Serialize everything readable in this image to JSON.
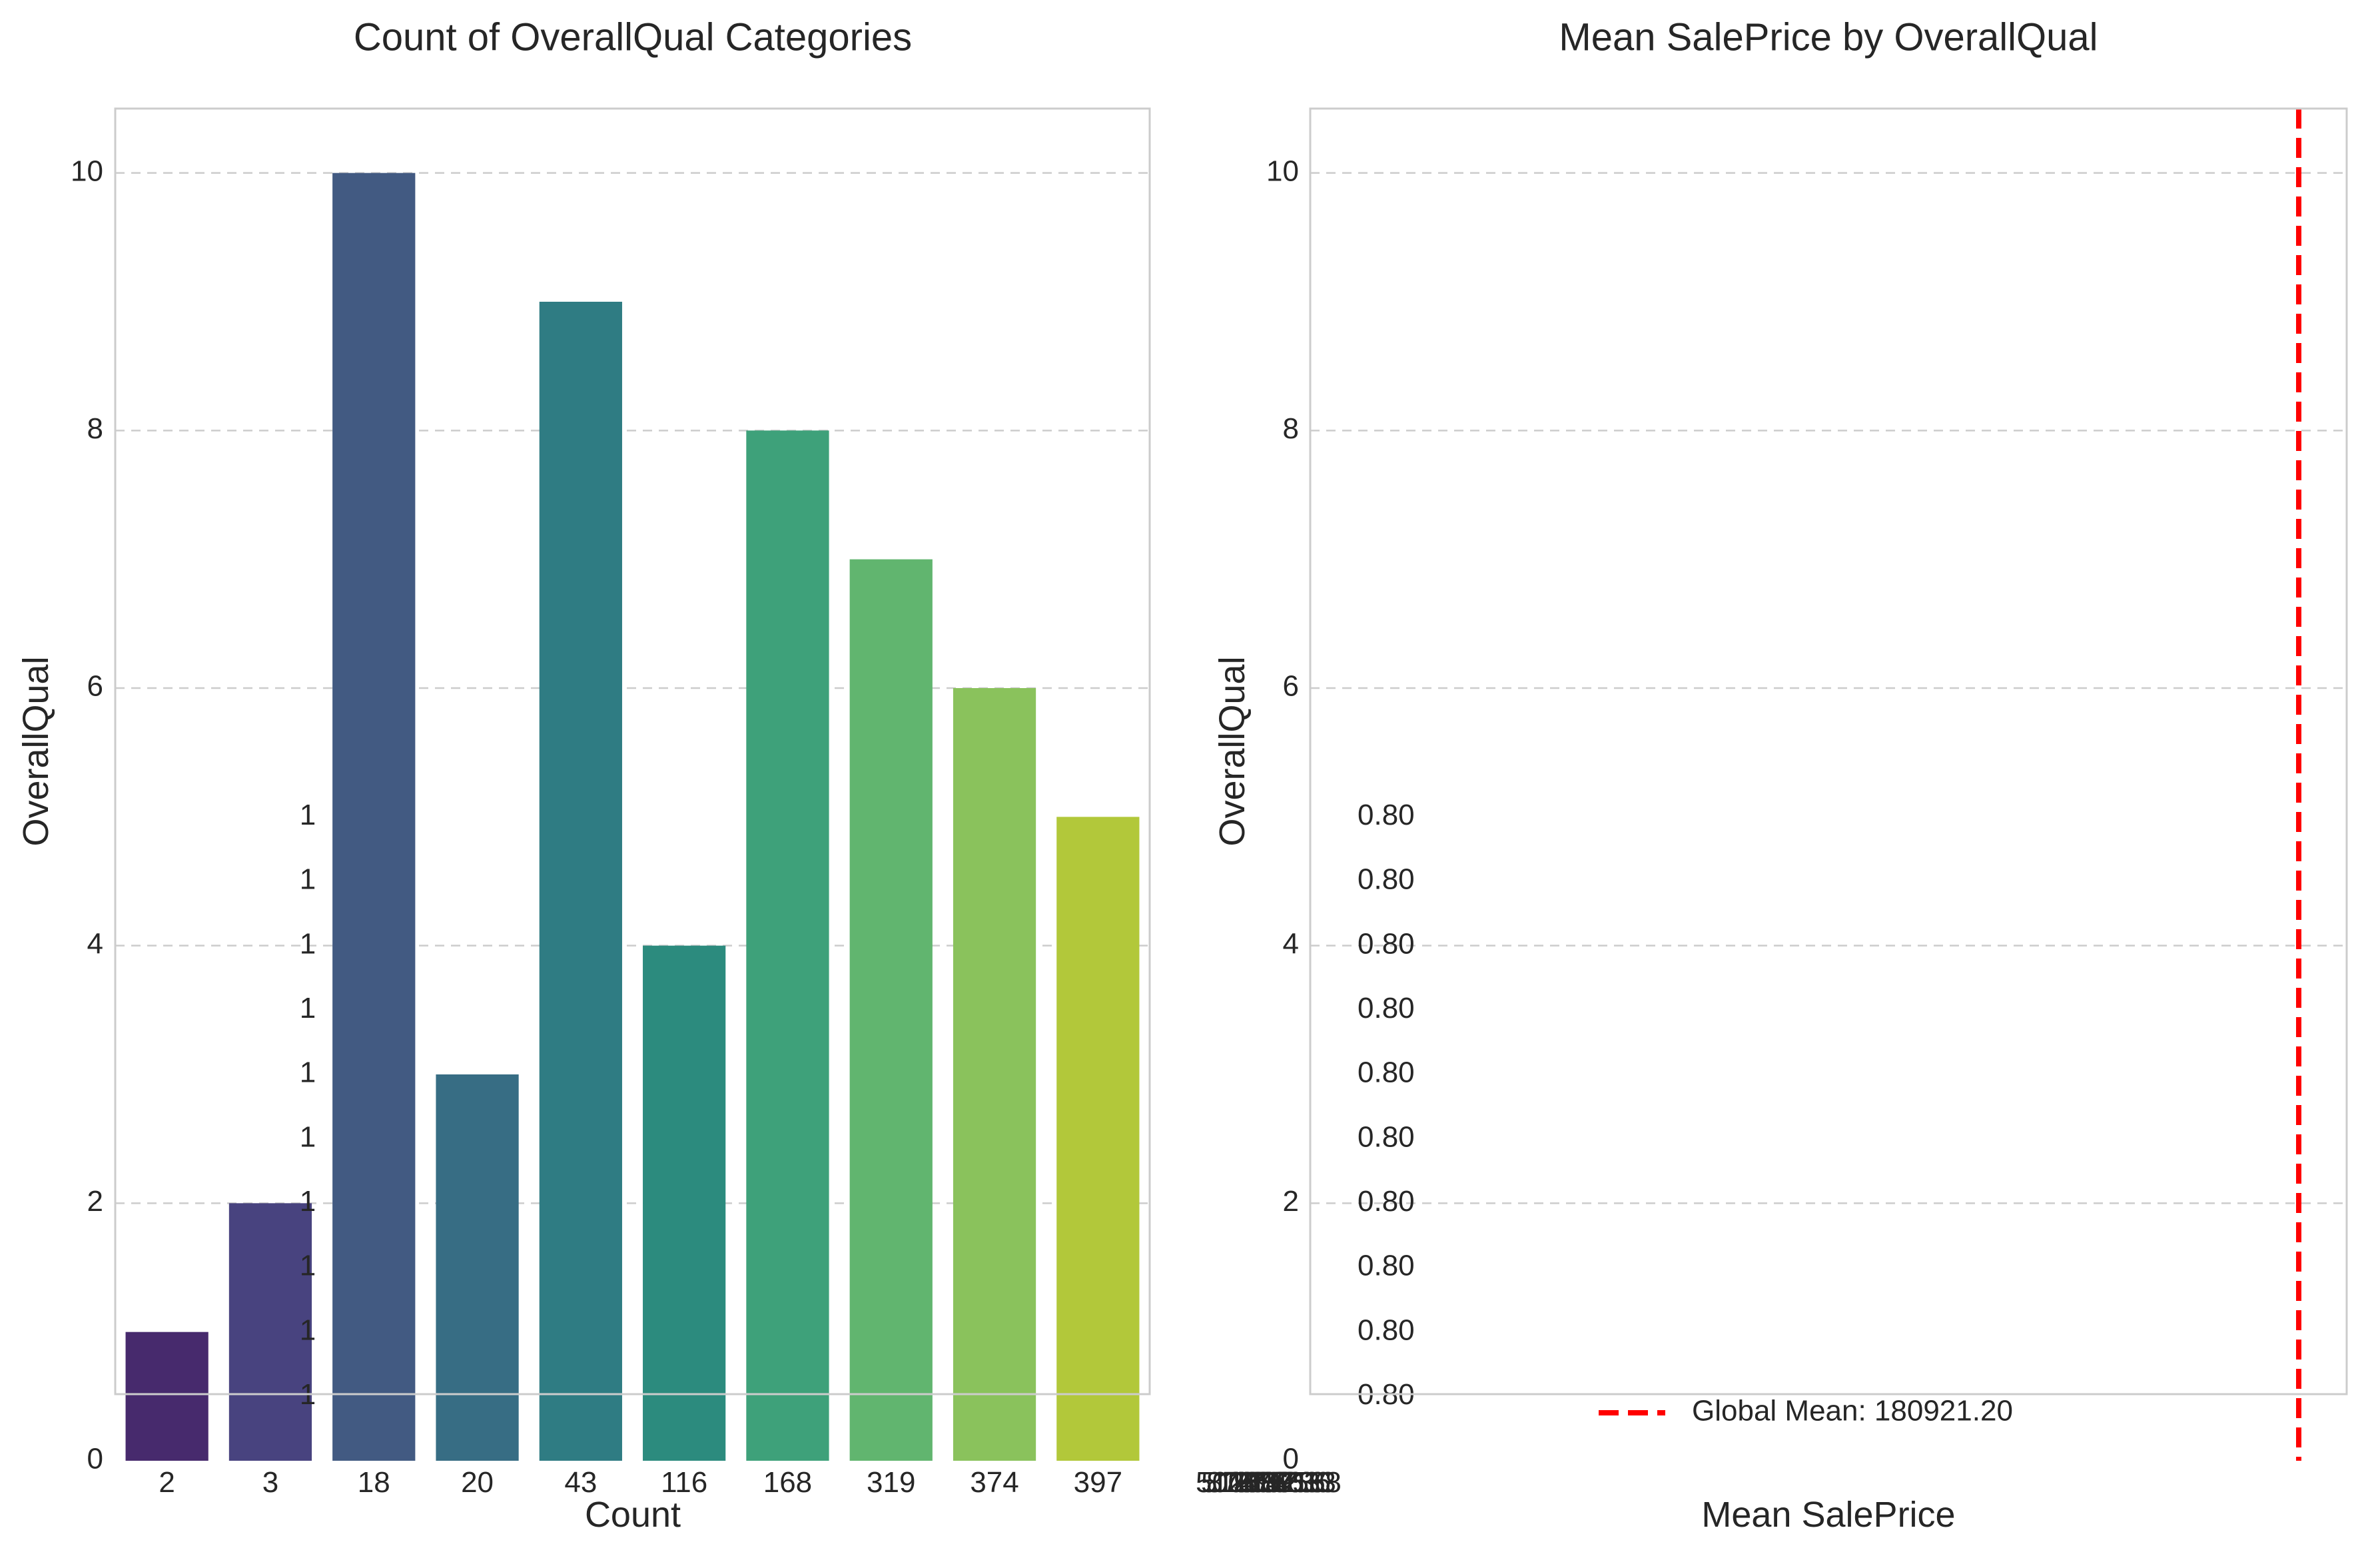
{
  "chart_data": [
    {
      "type": "bar",
      "title": "Count of OverallQual Categories",
      "xlabel": "Count",
      "ylabel": "OverallQual",
      "categories": [
        "2",
        "3",
        "18",
        "20",
        "43",
        "116",
        "168",
        "319",
        "374",
        "397"
      ],
      "values": [
        1,
        2,
        10,
        3,
        9,
        4,
        8,
        7,
        6,
        5
      ],
      "ylim": [
        0,
        10.5
      ],
      "yticks": [
        0,
        2,
        4,
        6,
        8,
        10
      ],
      "colors": [
        "#472a6d",
        "#48437f",
        "#425a82",
        "#376d84",
        "#2f7c83",
        "#2c8b7e",
        "#3ea17a",
        "#61b56f",
        "#8ac25c",
        "#b2c83a"
      ],
      "grid": true,
      "annotations": [
        "1",
        "1",
        "1",
        "1",
        "1",
        "1",
        "1",
        "1",
        "1",
        "1"
      ]
    },
    {
      "type": "bar",
      "title": "Mean SalePrice by OverallQual",
      "xlabel": "Mean SalePrice",
      "ylabel": "OverallQual",
      "ylim": [
        0,
        10.5
      ],
      "yticks": [
        0,
        2,
        4,
        6,
        8,
        10
      ],
      "grid": true,
      "annotations": [
        "0.80",
        "0.80",
        "0.80",
        "0.80",
        "0.80",
        "0.80",
        "0.80",
        "0.80",
        "0.80",
        "0.80"
      ],
      "overlapping_xtick_labels": [
        "50150",
        "51911",
        "87474",
        "108891",
        "133523",
        "161603",
        "207716",
        "274736",
        "367513",
        "438588"
      ],
      "global_mean": {
        "label": "Global Mean: 180921.20",
        "color": "#ff0000",
        "style": "dashed"
      },
      "legend_position": "lower-center"
    }
  ]
}
